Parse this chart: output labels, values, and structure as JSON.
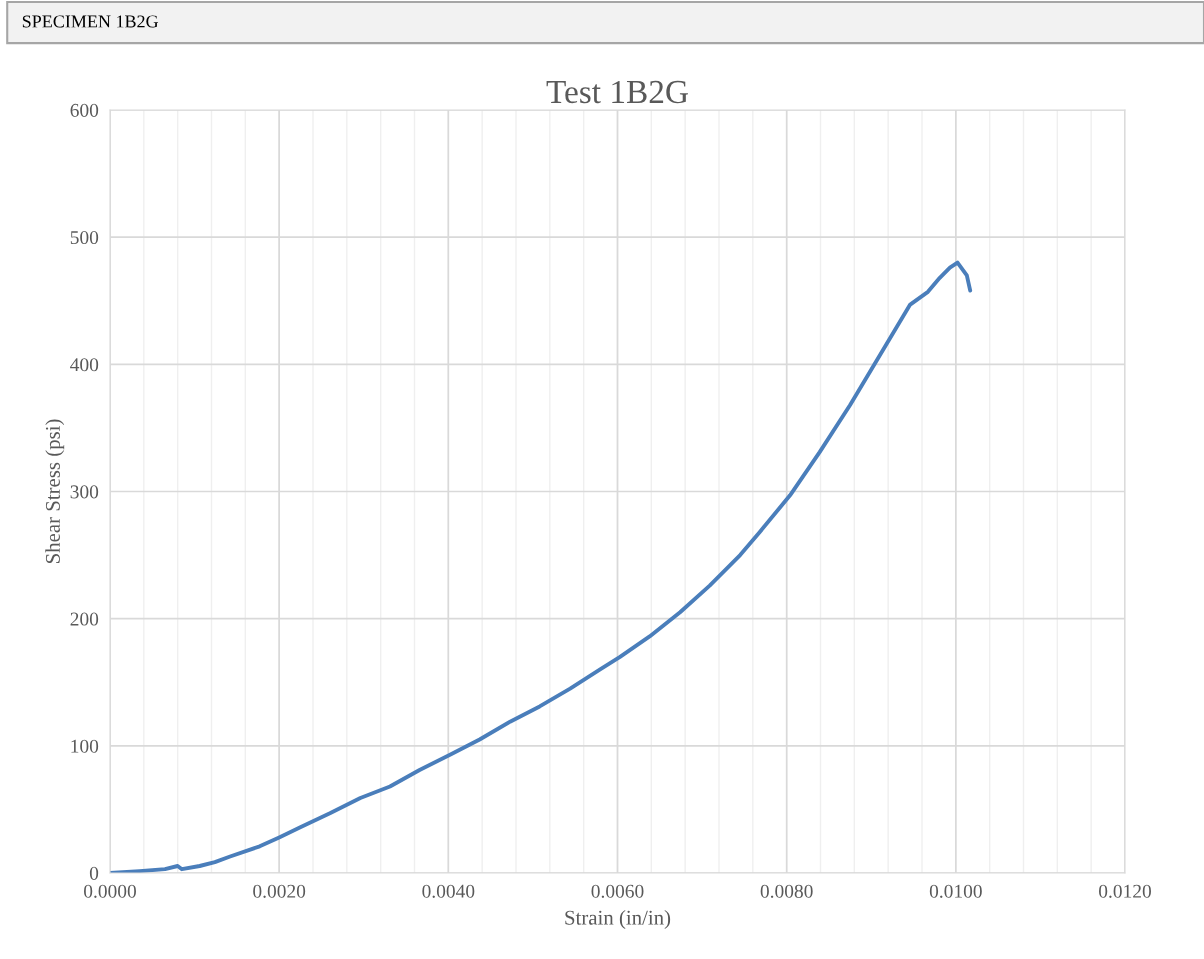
{
  "chart_data": {
    "type": "line",
    "title": "Test 1B2G",
    "subtitle": "SPECIMEN 1B2G",
    "xlabel": "Strain (in/in)",
    "ylabel": "Shear Stress (psi)",
    "x": [
      0.0,
      0.00035,
      0.00065,
      0.0008,
      0.00085,
      0.00106,
      0.00124,
      0.00142,
      0.00177,
      0.002,
      0.00225,
      0.0026,
      0.00296,
      0.00331,
      0.00366,
      0.00402,
      0.00437,
      0.00473,
      0.00508,
      0.00544,
      0.00579,
      0.00603,
      0.00638,
      0.00674,
      0.00709,
      0.00745,
      0.00768,
      0.00804,
      0.00839,
      0.00875,
      0.0091,
      0.00946,
      0.00967,
      0.00981,
      0.00993,
      0.01002,
      0.01013,
      0.01017
    ],
    "series": [
      {
        "color": "#4a7ebb",
        "values": [
          0,
          1.5,
          3,
          5.5,
          3,
          5.5,
          8.6,
          13,
          21,
          28,
          36,
          47,
          59,
          68,
          81,
          93,
          105,
          119,
          131,
          145,
          160,
          170,
          186,
          205,
          226,
          250,
          268,
          297,
          331,
          368,
          407,
          447,
          457,
          468,
          476,
          480,
          470,
          458
        ]
      }
    ],
    "xlim": [
      0,
      0.012
    ],
    "ylim": [
      0,
      600
    ],
    "xticks": [
      {
        "value": 0,
        "label": "0.0000"
      },
      {
        "value": 0.002,
        "label": "0.0020"
      },
      {
        "value": 0.004,
        "label": "0.0040"
      },
      {
        "value": 0.006,
        "label": "0.0060"
      },
      {
        "value": 0.008,
        "label": "0.0080"
      },
      {
        "value": 0.01,
        "label": "0.0100"
      },
      {
        "value": 0.012,
        "label": "0.0120"
      }
    ],
    "yticks": [
      0,
      100,
      200,
      300,
      400,
      500,
      600
    ],
    "grid": true,
    "legend": false,
    "marker": "none",
    "line_style": "solid"
  }
}
